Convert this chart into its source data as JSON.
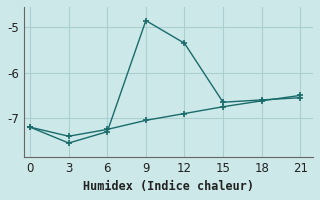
{
  "xlabel": "Humidex (Indice chaleur)",
  "bg_color": "#cce8e8",
  "grid_color": "#aacfcf",
  "line_color": "#1a6b6b",
  "line1_x": [
    0,
    3,
    6,
    9,
    12,
    15,
    18,
    21
  ],
  "line1_y": [
    -7.2,
    -7.55,
    -7.3,
    -4.85,
    -5.35,
    -6.65,
    -6.6,
    -6.55
  ],
  "line2_x": [
    0,
    3,
    6,
    9,
    12,
    15,
    18,
    21
  ],
  "line2_y": [
    -7.2,
    -7.4,
    -7.25,
    -7.05,
    -6.9,
    -6.75,
    -6.62,
    -6.5
  ],
  "xlim": [
    -0.5,
    22
  ],
  "ylim": [
    -7.85,
    -4.55
  ],
  "xticks": [
    0,
    3,
    6,
    9,
    12,
    15,
    18,
    21
  ],
  "yticks": [
    -7,
    -6,
    -5
  ],
  "fontsize": 8.5
}
